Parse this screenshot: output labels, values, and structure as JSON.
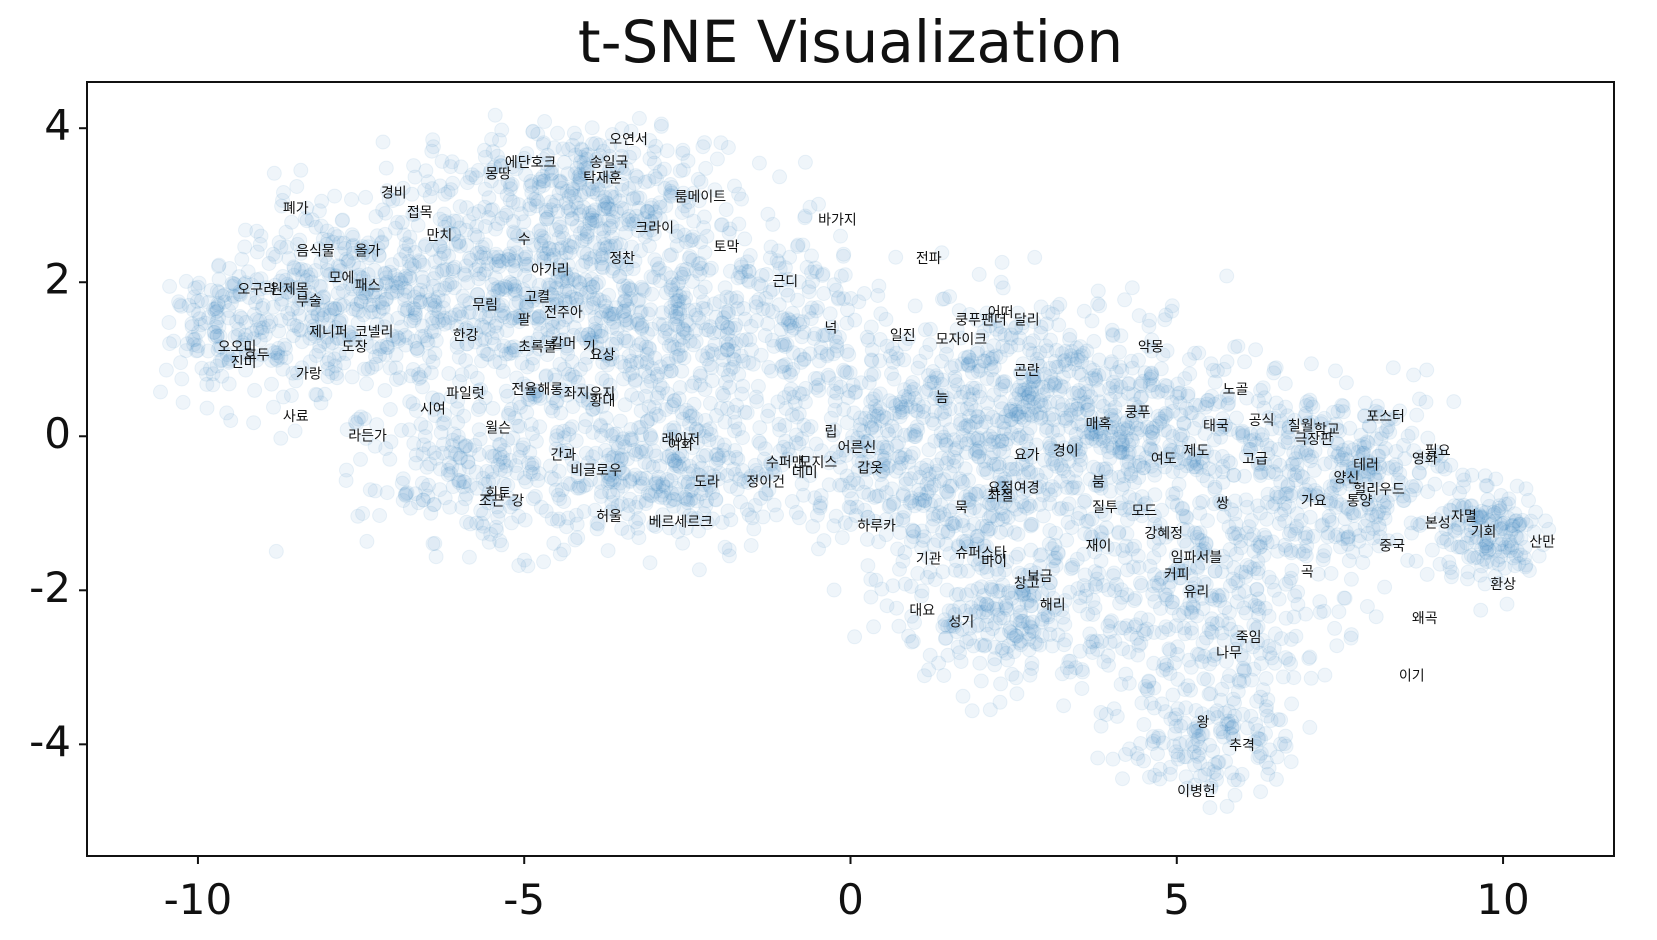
{
  "chart_data": {
    "type": "scatter",
    "title": "t-SNE Visualization",
    "xlabel": "",
    "ylabel": "",
    "xlim": [
      -11.7,
      11.7
    ],
    "ylim": [
      -5.45,
      4.6
    ],
    "x_ticks": [
      -10,
      -5,
      0,
      5,
      10
    ],
    "x_tick_labels": [
      "-10",
      "-5",
      "0",
      "5",
      "10"
    ],
    "y_ticks": [
      -4,
      -2,
      0,
      2,
      4
    ],
    "y_tick_labels": [
      "-4",
      "-2",
      "0",
      "2",
      "4"
    ],
    "grid": false,
    "legend": "none",
    "point_color": "#1f77b4",
    "point_opacity": 0.07,
    "labeled_points": [
      {
        "label": "오연서",
        "x": -3.4,
        "y": 3.85
      },
      {
        "label": "에단호크",
        "x": -4.9,
        "y": 3.55
      },
      {
        "label": "송일국",
        "x": -3.7,
        "y": 3.55
      },
      {
        "label": "몽땅",
        "x": -5.4,
        "y": 3.4
      },
      {
        "label": "탁재훈",
        "x": -3.8,
        "y": 3.35
      },
      {
        "label": "경비",
        "x": -7.0,
        "y": 3.15
      },
      {
        "label": "룸메이트",
        "x": -2.3,
        "y": 3.1
      },
      {
        "label": "폐가",
        "x": -8.5,
        "y": 2.95
      },
      {
        "label": "접목",
        "x": -6.6,
        "y": 2.9
      },
      {
        "label": "바가지",
        "x": -0.2,
        "y": 2.8
      },
      {
        "label": "크라이",
        "x": -3.0,
        "y": 2.7
      },
      {
        "label": "만치",
        "x": -6.3,
        "y": 2.6
      },
      {
        "label": "수",
        "x": -5.0,
        "y": 2.55
      },
      {
        "label": "토막",
        "x": -1.9,
        "y": 2.45
      },
      {
        "label": "음식물",
        "x": -8.2,
        "y": 2.4
      },
      {
        "label": "올가",
        "x": -7.4,
        "y": 2.4
      },
      {
        "label": "정찬",
        "x": -3.5,
        "y": 2.3
      },
      {
        "label": "전파",
        "x": 1.2,
        "y": 2.3
      },
      {
        "label": "아가리",
        "x": -4.6,
        "y": 2.15
      },
      {
        "label": "근디",
        "x": -1.0,
        "y": 2.0
      },
      {
        "label": "모에",
        "x": -7.8,
        "y": 2.05
      },
      {
        "label": "패스",
        "x": -7.4,
        "y": 1.95
      },
      {
        "label": "오구리",
        "x": -9.1,
        "y": 1.9
      },
      {
        "label": "원제목",
        "x": -8.6,
        "y": 1.9
      },
      {
        "label": "고켤",
        "x": -4.8,
        "y": 1.8
      },
      {
        "label": "부술",
        "x": -8.3,
        "y": 1.75
      },
      {
        "label": "무림",
        "x": -5.6,
        "y": 1.7
      },
      {
        "label": "전주아",
        "x": -4.4,
        "y": 1.6
      },
      {
        "label": "어떠",
        "x": 2.3,
        "y": 1.6
      },
      {
        "label": "팔",
        "x": -5.0,
        "y": 1.5
      },
      {
        "label": "쿵푸팬더",
        "x": 2.0,
        "y": 1.5
      },
      {
        "label": "달리",
        "x": 2.7,
        "y": 1.5
      },
      {
        "label": "넉",
        "x": -0.3,
        "y": 1.4
      },
      {
        "label": "일진",
        "x": 0.8,
        "y": 1.3
      },
      {
        "label": "모자이크",
        "x": 1.7,
        "y": 1.25
      },
      {
        "label": "제니퍼",
        "x": -8.0,
        "y": 1.35
      },
      {
        "label": "코넬리",
        "x": -7.3,
        "y": 1.35
      },
      {
        "label": "한강",
        "x": -5.9,
        "y": 1.3
      },
      {
        "label": "도장",
        "x": -7.6,
        "y": 1.15
      },
      {
        "label": "오오미",
        "x": -9.4,
        "y": 1.15
      },
      {
        "label": "호두",
        "x": -9.1,
        "y": 1.05
      },
      {
        "label": "초록불",
        "x": -4.8,
        "y": 1.15
      },
      {
        "label": "칼머",
        "x": -4.4,
        "y": 1.2
      },
      {
        "label": "기",
        "x": -4.0,
        "y": 1.15
      },
      {
        "label": "요상",
        "x": -3.8,
        "y": 1.05
      },
      {
        "label": "악몽",
        "x": 4.6,
        "y": 1.15
      },
      {
        "label": "진미",
        "x": -9.3,
        "y": 0.95
      },
      {
        "label": "가랑",
        "x": -8.3,
        "y": 0.8
      },
      {
        "label": "곤란",
        "x": 2.7,
        "y": 0.85
      },
      {
        "label": "전율",
        "x": -5.0,
        "y": 0.6
      },
      {
        "label": "해롱",
        "x": -4.6,
        "y": 0.6
      },
      {
        "label": "좌지우지",
        "x": -4.0,
        "y": 0.55
      },
      {
        "label": "파일럿",
        "x": -5.9,
        "y": 0.55
      },
      {
        "label": "황대",
        "x": -3.8,
        "y": 0.45
      },
      {
        "label": "노골",
        "x": 5.9,
        "y": 0.6
      },
      {
        "label": "늠",
        "x": 1.4,
        "y": 0.5
      },
      {
        "label": "시여",
        "x": -6.4,
        "y": 0.35
      },
      {
        "label": "쿵푸",
        "x": 4.4,
        "y": 0.3
      },
      {
        "label": "사료",
        "x": -8.5,
        "y": 0.25
      },
      {
        "label": "포스터",
        "x": 8.2,
        "y": 0.25
      },
      {
        "label": "공식",
        "x": 6.3,
        "y": 0.2
      },
      {
        "label": "매혹",
        "x": 3.8,
        "y": 0.15
      },
      {
        "label": "태국",
        "x": 5.6,
        "y": 0.13
      },
      {
        "label": "윌슨",
        "x": -5.4,
        "y": 0.1
      },
      {
        "label": "칠월",
        "x": 6.9,
        "y": 0.13
      },
      {
        "label": "학교",
        "x": 7.3,
        "y": 0.08
      },
      {
        "label": "립",
        "x": -0.3,
        "y": 0.05
      },
      {
        "label": "라든가",
        "x": -7.4,
        "y": 0.0
      },
      {
        "label": "극장판",
        "x": 7.1,
        "y": -0.05
      },
      {
        "label": "레이저",
        "x": -2.6,
        "y": -0.05
      },
      {
        "label": "여화",
        "x": -2.6,
        "y": -0.12
      },
      {
        "label": "어른신",
        "x": 0.1,
        "y": -0.15
      },
      {
        "label": "경이",
        "x": 3.3,
        "y": -0.2
      },
      {
        "label": "제도",
        "x": 5.3,
        "y": -0.2
      },
      {
        "label": "필요",
        "x": 9.0,
        "y": -0.2
      },
      {
        "label": "요가",
        "x": 2.7,
        "y": -0.25
      },
      {
        "label": "간과",
        "x": -4.4,
        "y": -0.25
      },
      {
        "label": "고급",
        "x": 6.2,
        "y": -0.3
      },
      {
        "label": "여도",
        "x": 4.8,
        "y": -0.3
      },
      {
        "label": "영화",
        "x": 8.8,
        "y": -0.3
      },
      {
        "label": "수퍼맨",
        "x": -1.0,
        "y": -0.35
      },
      {
        "label": "모지스",
        "x": -0.5,
        "y": -0.35
      },
      {
        "label": "테러",
        "x": 7.9,
        "y": -0.38
      },
      {
        "label": "갑옷",
        "x": 0.3,
        "y": -0.42
      },
      {
        "label": "비글로우",
        "x": -3.9,
        "y": -0.45
      },
      {
        "label": "데미",
        "x": -0.7,
        "y": -0.48
      },
      {
        "label": "양신",
        "x": 7.6,
        "y": -0.55
      },
      {
        "label": "도라",
        "x": -2.2,
        "y": -0.6
      },
      {
        "label": "정이건",
        "x": -1.3,
        "y": -0.6
      },
      {
        "label": "붐",
        "x": 3.8,
        "y": -0.6
      },
      {
        "label": "헐리우드",
        "x": 8.1,
        "y": -0.7
      },
      {
        "label": "요정",
        "x": 2.3,
        "y": -0.68
      },
      {
        "label": "여경",
        "x": 2.7,
        "y": -0.68
      },
      {
        "label": "좌절",
        "x": 2.3,
        "y": -0.78
      },
      {
        "label": "회토",
        "x": -5.4,
        "y": -0.75
      },
      {
        "label": "조근",
        "x": -5.5,
        "y": -0.85
      },
      {
        "label": "가요",
        "x": 7.1,
        "y": -0.85
      },
      {
        "label": "통양",
        "x": 7.8,
        "y": -0.85
      },
      {
        "label": "강",
        "x": -5.1,
        "y": -0.85
      },
      {
        "label": "쌍",
        "x": 5.7,
        "y": -0.88
      },
      {
        "label": "질투",
        "x": 3.9,
        "y": -0.93
      },
      {
        "label": "묵",
        "x": 1.7,
        "y": -0.93
      },
      {
        "label": "모드",
        "x": 4.5,
        "y": -0.98
      },
      {
        "label": "허울",
        "x": -3.7,
        "y": -1.05
      },
      {
        "label": "베르세르크",
        "x": -2.6,
        "y": -1.12
      },
      {
        "label": "자멸",
        "x": 9.4,
        "y": -1.05
      },
      {
        "label": "본성",
        "x": 9.0,
        "y": -1.13
      },
      {
        "label": "하루카",
        "x": 0.4,
        "y": -1.17
      },
      {
        "label": "기회",
        "x": 9.7,
        "y": -1.25
      },
      {
        "label": "강혜정",
        "x": 4.8,
        "y": -1.27
      },
      {
        "label": "산만",
        "x": 10.6,
        "y": -1.38
      },
      {
        "label": "재이",
        "x": 3.8,
        "y": -1.43
      },
      {
        "label": "중국",
        "x": 8.3,
        "y": -1.43
      },
      {
        "label": "슈퍼스타",
        "x": 2.0,
        "y": -1.52
      },
      {
        "label": "기관",
        "x": 1.2,
        "y": -1.6
      },
      {
        "label": "임파서블",
        "x": 5.3,
        "y": -1.58
      },
      {
        "label": "바이",
        "x": 2.2,
        "y": -1.63
      },
      {
        "label": "곡",
        "x": 7.0,
        "y": -1.77
      },
      {
        "label": "커피",
        "x": 5.0,
        "y": -1.8
      },
      {
        "label": "보금",
        "x": 2.9,
        "y": -1.83
      },
      {
        "label": "창고",
        "x": 2.7,
        "y": -1.92
      },
      {
        "label": "유리",
        "x": 5.3,
        "y": -2.03
      },
      {
        "label": "환상",
        "x": 10.0,
        "y": -1.93
      },
      {
        "label": "해리",
        "x": 3.1,
        "y": -2.2
      },
      {
        "label": "대요",
        "x": 1.1,
        "y": -2.27
      },
      {
        "label": "왜곡",
        "x": 8.8,
        "y": -2.37
      },
      {
        "label": "성기",
        "x": 1.7,
        "y": -2.42
      },
      {
        "label": "죽임",
        "x": 6.1,
        "y": -2.62
      },
      {
        "label": "나무",
        "x": 5.8,
        "y": -2.82
      },
      {
        "label": "이기",
        "x": 8.6,
        "y": -3.12
      },
      {
        "label": "왕",
        "x": 5.4,
        "y": -3.72
      },
      {
        "label": "추격",
        "x": 6.0,
        "y": -4.02
      },
      {
        "label": "이병헌",
        "x": 5.3,
        "y": -4.62
      }
    ]
  }
}
